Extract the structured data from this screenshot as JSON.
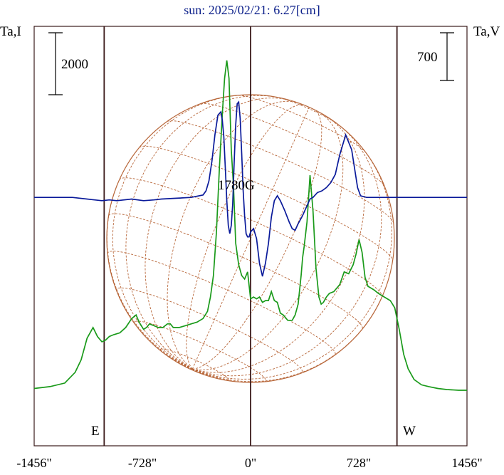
{
  "chart_data": {
    "type": "line",
    "title": "sun: 2025/02/21: 6.27[cm]",
    "left_axis_label": "Ta,I",
    "right_axis_label": "Ta,V",
    "left_scale_label": "2000",
    "right_scale_label": "700",
    "disk_label": "1780G",
    "east_label": "E",
    "west_label": "W",
    "x_ticks": [
      "-1456\"",
      "-728\"",
      "0\"",
      "728\"",
      "1456\""
    ],
    "x_tick_values": [
      -1456,
      -728,
      0,
      728,
      1456
    ],
    "xlim": [
      -1456,
      1456
    ],
    "limb_x": [
      -985,
      985
    ],
    "colors": {
      "intensity": "#1a9a1a",
      "polarization": "#0a1a9a",
      "disk": "#b8673a",
      "frame": "#3a1a1a",
      "title": "#0b1f8a"
    },
    "series": [
      {
        "key": "intensity",
        "x": [
          -1456,
          -1350,
          -1250,
          -1180,
          -1140,
          -1100,
          -1060,
          -1030,
          -1000,
          -975,
          -950,
          -920,
          -880,
          -840,
          -800,
          -770,
          -750,
          -720,
          -700,
          -680,
          -650,
          -620,
          -590,
          -560,
          -540,
          -520,
          -480,
          -440,
          -400,
          -360,
          -320,
          -290,
          -270,
          -250,
          -230,
          -210,
          -190,
          -175,
          -160,
          -145,
          -130,
          -115,
          -100,
          -80,
          -60,
          -40,
          -20,
          0,
          20,
          40,
          60,
          80,
          100,
          120,
          140,
          160,
          180,
          200,
          220,
          250,
          280,
          300,
          320,
          340,
          350,
          360,
          380,
          400,
          420,
          440,
          460,
          475,
          490,
          510,
          530,
          560,
          600,
          630,
          660,
          690,
          710,
          730,
          750,
          770,
          790,
          810,
          830,
          860,
          900,
          940,
          970,
          1000,
          1030,
          1060,
          1100,
          1150,
          1200,
          1260,
          1320,
          1400,
          1456
        ],
        "y": [
          -3150,
          -3100,
          -3000,
          -2700,
          -2350,
          -1750,
          -1450,
          -1700,
          -1850,
          -1800,
          -1700,
          -1650,
          -1600,
          -1450,
          -1200,
          -1100,
          -1300,
          -1500,
          -1450,
          -1350,
          -1400,
          -1450,
          -1450,
          -1350,
          -1350,
          -1450,
          -1450,
          -1400,
          -1350,
          -1300,
          -1200,
          -1000,
          -600,
          0,
          1200,
          3000,
          4500,
          5500,
          6000,
          5500,
          3500,
          2500,
          900,
          300,
          0,
          -100,
          100,
          -650,
          -600,
          -650,
          -600,
          -750,
          -700,
          -700,
          -450,
          -700,
          -750,
          -1050,
          -1100,
          -1250,
          -1250,
          -1100,
          -800,
          0,
          500,
          800,
          1500,
          2800,
          1800,
          200,
          -600,
          -800,
          -750,
          -600,
          -500,
          -450,
          -250,
          100,
          50,
          300,
          600,
          1000,
          650,
          -50,
          -300,
          -350,
          -400,
          -500,
          -600,
          -700,
          -900,
          -1500,
          -2200,
          -2600,
          -2900,
          -3050,
          -3100,
          -3150,
          -3180,
          -3200,
          -3200
        ]
      },
      {
        "key": "polarization",
        "x": [
          -1456,
          -1200,
          -1050,
          -1000,
          -950,
          -900,
          -800,
          -720,
          -650,
          -600,
          -500,
          -400,
          -320,
          -300,
          -280,
          -260,
          -240,
          -220,
          -200,
          -190,
          -180,
          -170,
          -160,
          -150,
          -140,
          -130,
          -120,
          -110,
          -100,
          -90,
          -80,
          -70,
          -60,
          -50,
          -40,
          -30,
          -20,
          -10,
          0,
          20,
          40,
          60,
          80,
          100,
          120,
          140,
          160,
          180,
          200,
          230,
          260,
          280,
          300,
          320,
          350,
          380,
          400,
          420,
          450,
          480,
          510,
          540,
          570,
          600,
          640,
          680,
          720,
          740,
          760,
          780,
          800,
          820,
          840,
          860,
          880,
          900,
          930,
          970,
          1000,
          1050,
          1100,
          1200,
          1300,
          1456
        ],
        "y": [
          0,
          0,
          -15,
          -20,
          -15,
          -20,
          -10,
          -20,
          -15,
          -10,
          -5,
          0,
          15,
          40,
          100,
          220,
          380,
          500,
          520,
          470,
          370,
          180,
          -20,
          -170,
          -220,
          -170,
          -40,
          220,
          440,
          570,
          580,
          480,
          270,
          40,
          -110,
          -220,
          -240,
          -240,
          -210,
          -190,
          -250,
          -400,
          -480,
          -400,
          -280,
          -120,
          -20,
          10,
          -20,
          -80,
          -150,
          -190,
          -200,
          -160,
          -110,
          -50,
          -10,
          0,
          30,
          40,
          60,
          90,
          140,
          260,
          380,
          290,
          60,
          10,
          5,
          0,
          0,
          0,
          0,
          0,
          0,
          0,
          0,
          0,
          0,
          0,
          0,
          0,
          0,
          0
        ]
      }
    ],
    "intensity_ylim": [
      -4750,
      6950
    ],
    "polarization_ylim": [
      -1510,
      1040
    ]
  }
}
